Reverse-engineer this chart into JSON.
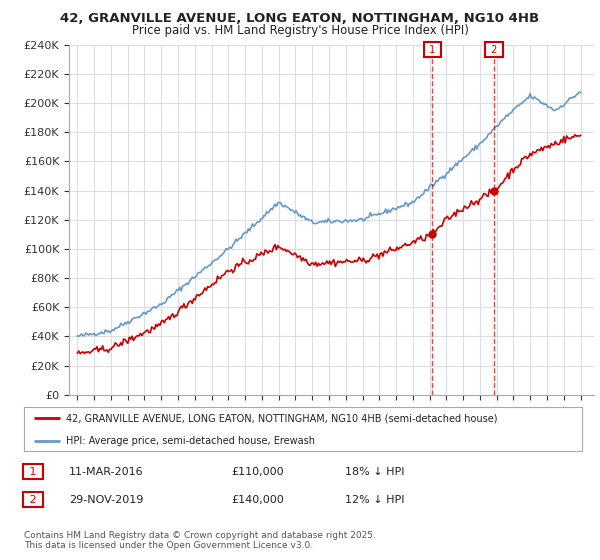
{
  "title": "42, GRANVILLE AVENUE, LONG EATON, NOTTINGHAM, NG10 4HB",
  "subtitle": "Price paid vs. HM Land Registry's House Price Index (HPI)",
  "red_label": "42, GRANVILLE AVENUE, LONG EATON, NOTTINGHAM, NG10 4HB (semi-detached house)",
  "blue_label": "HPI: Average price, semi-detached house, Erewash",
  "copyright": "Contains HM Land Registry data © Crown copyright and database right 2025.\nThis data is licensed under the Open Government Licence v3.0.",
  "point1_date": "11-MAR-2016",
  "point1_price": 110000,
  "point1_hpi_diff": "18% ↓ HPI",
  "point2_date": "29-NOV-2019",
  "point2_price": 140000,
  "point2_hpi_diff": "12% ↓ HPI",
  "ylim": [
    0,
    240000
  ],
  "ytick_step": 20000,
  "background_color": "#ffffff",
  "grid_color": "#dddddd",
  "red_color": "#cc0000",
  "blue_color": "#6699cc",
  "hpi_anchors_t": [
    1995,
    1997,
    2000,
    2004,
    2007,
    2009,
    2012,
    2015,
    2017,
    2019,
    2020.5,
    2022,
    2023.5,
    2025
  ],
  "hpi_anchors_v": [
    40000,
    44000,
    62000,
    100000,
    132000,
    118000,
    120000,
    132000,
    152000,
    172000,
    190000,
    205000,
    195000,
    208000
  ],
  "red_anchors_t": [
    1995,
    1997,
    2000,
    2004,
    2007,
    2009,
    2012,
    2014,
    2016.2,
    2017,
    2018,
    2019.9,
    2021,
    2022,
    2023,
    2024,
    2025
  ],
  "red_anchors_v": [
    28000,
    32000,
    48000,
    85000,
    102000,
    90000,
    92000,
    100000,
    110000,
    120000,
    128000,
    140000,
    155000,
    165000,
    170000,
    175000,
    178000
  ],
  "point1_x": 2016.17,
  "point2_x": 2019.83,
  "xlim": [
    1994.5,
    2025.8
  ]
}
